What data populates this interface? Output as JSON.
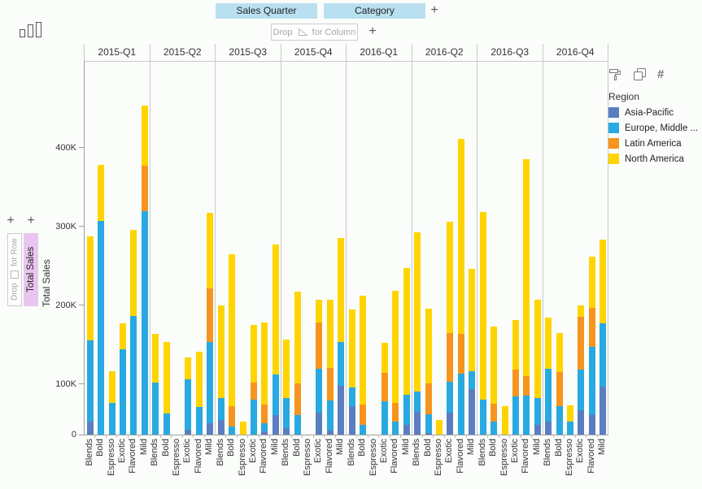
{
  "toolbar_left": {
    "icon": "bar-chart-icon"
  },
  "column_shelf": {
    "pills": [
      {
        "label": "Sales Quarter"
      },
      {
        "label": "Category"
      }
    ],
    "add_button": "+",
    "drop_zone": {
      "prefix": "Drop",
      "icon": "triangle-icon",
      "suffix": "for Column"
    },
    "drop_add_button": "+"
  },
  "row_shelf": {
    "add_buttons": [
      "+",
      "+"
    ],
    "drop_zone": {
      "prefix": "Drop",
      "icon": "square-icon",
      "suffix": "for Row"
    },
    "pill": {
      "label": "Total Sales",
      "color": "#e9c6ef"
    }
  },
  "colors": {
    "shelf_pill": "#b9e0f1",
    "row_pill": "#e9c6ef"
  },
  "legend": {
    "icons": [
      "format-painter-icon",
      "copy-icon",
      "number-sign-icon"
    ],
    "title": "Region",
    "items": [
      {
        "label": "Asia-Pacific",
        "color": "#5b7ec1"
      },
      {
        "label": "Europe, Middle ...",
        "color": "#29a9e1"
      },
      {
        "label": "Latin America",
        "color": "#f7941e"
      },
      {
        "label": "North America",
        "color": "#ffd400"
      }
    ]
  },
  "chart_data": {
    "type": "bar",
    "stacked": true,
    "title": "",
    "xlabel": "",
    "ylabel": "Total Sales",
    "value_unit": "K (thousands)",
    "legend_position": "right",
    "grid": false,
    "y_axis": {
      "ticks": [
        {
          "label": "0",
          "value": 0
        },
        {
          "label": "100K",
          "value": 100
        },
        {
          "label": "200K",
          "value": 200
        },
        {
          "label": "300K",
          "value": 300
        },
        {
          "label": "400K",
          "value": 400
        }
      ],
      "max": 470
    },
    "categories": [
      "Blends",
      "Bold",
      "Espresso",
      "Exotic",
      "Flavored",
      "Mild"
    ],
    "segment_order": [
      "Asia-Pacific",
      "Europe, Middle ...",
      "Latin America",
      "North America"
    ],
    "groups": [
      {
        "quarter": "2015-Q1",
        "bars": [
          {
            "category": "Blends",
            "segments": [
              52,
              104,
              0,
              132
            ]
          },
          {
            "category": "Bold",
            "segments": [
              0,
              307,
              0,
              71
            ]
          },
          {
            "category": "Espresso",
            "segments": [
              0,
              76,
              0,
              40
            ]
          },
          {
            "category": "Exotic",
            "segments": [
              0,
              144,
              0,
              33
            ]
          },
          {
            "category": "Flavored",
            "segments": [
              0,
              187,
              0,
              109
            ]
          },
          {
            "category": "Mild",
            "segments": [
              0,
              320,
              57,
              77
            ]
          }
        ]
      },
      {
        "quarter": "2015-Q2",
        "bars": [
          {
            "category": "Blends",
            "segments": [
              0,
              102,
              0,
              62
            ]
          },
          {
            "category": "Bold",
            "segments": [
              0,
              63,
              0,
              91
            ]
          },
          {
            "category": "Espresso",
            "segments": [
              0,
              0,
              0,
              0
            ]
          },
          {
            "category": "Exotic",
            "segments": [
              42,
              64,
              0,
              28
            ]
          },
          {
            "category": "Flavored",
            "segments": [
              0,
              71,
              0,
              70
            ]
          },
          {
            "category": "Mild",
            "segments": [
              50,
              104,
              68,
              95
            ]
          }
        ]
      },
      {
        "quarter": "2015-Q3",
        "bars": [
          {
            "category": "Blends",
            "segments": [
              55,
              27,
              0,
              118
            ]
          },
          {
            "category": "Bold",
            "segments": [
              0,
              46,
              26,
              193
            ]
          },
          {
            "category": "Espresso",
            "segments": [
              0,
              0,
              0,
              53
            ]
          },
          {
            "category": "Exotic",
            "segments": [
              0,
              80,
              22,
              73
            ]
          },
          {
            "category": "Flavored",
            "segments": [
              40,
              10,
              24,
              104
            ]
          },
          {
            "category": "Mild",
            "segments": [
              61,
              51,
              0,
              165
            ]
          }
        ]
      },
      {
        "quarter": "2015-Q4",
        "bars": [
          {
            "category": "Blends",
            "segments": [
              44,
              38,
              0,
              75
            ]
          },
          {
            "category": "Bold",
            "segments": [
              0,
              61,
              40,
              116
            ]
          },
          {
            "category": "Espresso",
            "segments": [
              0,
              0,
              0,
              0
            ]
          },
          {
            "category": "Exotic",
            "segments": [
              64,
              56,
              58,
              29
            ]
          },
          {
            "category": "Flavored",
            "segments": [
              41,
              38,
              42,
              86
            ]
          },
          {
            "category": "Mild",
            "segments": [
              98,
              56,
              0,
              131
            ]
          }
        ]
      },
      {
        "quarter": "2016-Q1",
        "bars": [
          {
            "category": "Blends",
            "segments": [
              72,
              24,
              0,
              99
            ]
          },
          {
            "category": "Bold",
            "segments": [
              0,
              48,
              26,
              138
            ]
          },
          {
            "category": "Espresso",
            "segments": [
              0,
              0,
              0,
              0
            ]
          },
          {
            "category": "Exotic",
            "segments": [
              0,
              78,
              36,
              39
            ]
          },
          {
            "category": "Flavored",
            "segments": [
              0,
              53,
              23,
              142
            ]
          },
          {
            "category": "Mild",
            "segments": [
              48,
              39,
              0,
              160
            ]
          }
        ]
      },
      {
        "quarter": "2016-Q2",
        "bars": [
          {
            "category": "Blends",
            "segments": [
              65,
              26,
              0,
              202
            ]
          },
          {
            "category": "Bold",
            "segments": [
              38,
              24,
              39,
              95
            ]
          },
          {
            "category": "Espresso",
            "segments": [
              0,
              0,
              0,
              55
            ]
          },
          {
            "category": "Exotic",
            "segments": [
              64,
              39,
              62,
              141
            ]
          },
          {
            "category": "Flavored",
            "segments": [
              0,
              113,
              51,
              247
            ]
          },
          {
            "category": "Mild",
            "segments": [
              94,
              22,
              0,
              130
            ]
          }
        ]
      },
      {
        "quarter": "2016-Q3",
        "bars": [
          {
            "category": "Blends",
            "segments": [
              0,
              80,
              0,
              238
            ]
          },
          {
            "category": "Bold",
            "segments": [
              0,
              53,
              22,
              98
            ]
          },
          {
            "category": "Espresso",
            "segments": [
              0,
              0,
              0,
              72
            ]
          },
          {
            "category": "Exotic",
            "segments": [
              0,
              84,
              34,
              63
            ]
          },
          {
            "category": "Flavored",
            "segments": [
              0,
              86,
              24,
              275
            ]
          },
          {
            "category": "Mild",
            "segments": [
              48,
              34,
              0,
              125
            ]
          }
        ]
      },
      {
        "quarter": "2016-Q4",
        "bars": [
          {
            "category": "Blends",
            "segments": [
              53,
              67,
              0,
              64
            ]
          },
          {
            "category": "Bold",
            "segments": [
              0,
              72,
              43,
              50
            ]
          },
          {
            "category": "Espresso",
            "segments": [
              0,
              53,
              0,
              20
            ]
          },
          {
            "category": "Exotic",
            "segments": [
              67,
              51,
              68,
              14
            ]
          },
          {
            "category": "Flavored",
            "segments": [
              61,
              86,
              50,
              65
            ]
          },
          {
            "category": "Mild",
            "segments": [
              97,
              80,
              0,
              106
            ]
          }
        ]
      }
    ]
  }
}
